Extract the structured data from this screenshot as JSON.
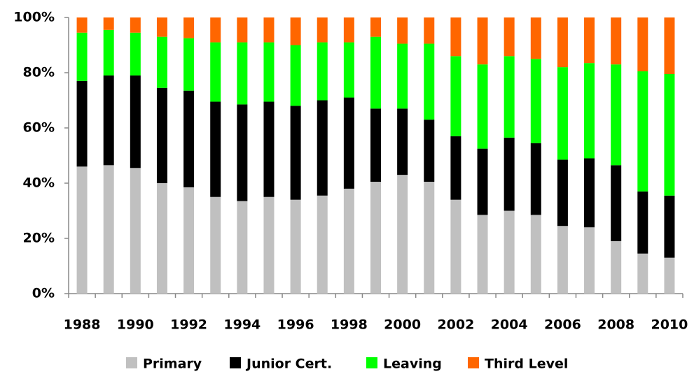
{
  "chart_data": {
    "type": "stacked_bar",
    "categories": [
      "1988",
      null,
      "1990",
      null,
      "1992",
      null,
      "1994",
      null,
      "1996",
      null,
      "1998",
      null,
      "2000",
      null,
      "2002",
      null,
      "2004",
      null,
      "2006",
      null,
      "2008",
      null,
      "2010"
    ],
    "series": [
      {
        "name": "Primary",
        "color": "#c0c0c0",
        "values": [
          46,
          46.5,
          45.5,
          40,
          38.5,
          35,
          33.5,
          35,
          34,
          35.5,
          38,
          40.5,
          43,
          40.5,
          34,
          28.5,
          30,
          28.5,
          24.5,
          24,
          19,
          14.5,
          13
        ]
      },
      {
        "name": "Junior Cert.",
        "color": "#000000",
        "values": [
          31,
          32.5,
          33.5,
          34.5,
          35,
          34.5,
          35,
          34.5,
          34,
          34.5,
          33,
          26.5,
          24,
          22.5,
          23,
          24,
          26.5,
          26,
          24,
          25,
          27.5,
          22.5,
          22.5
        ]
      },
      {
        "name": "Leaving",
        "color": "#00ff00",
        "values": [
          17.5,
          16.5,
          15.5,
          18.5,
          19,
          21.5,
          22.5,
          21.5,
          22,
          21,
          20,
          26,
          23.5,
          27.5,
          29,
          30.5,
          29.5,
          30.5,
          33.5,
          34.5,
          36.5,
          43.5,
          44
        ]
      },
      {
        "name": "Third Level",
        "color": "#ff6600",
        "values": [
          5.5,
          4.5,
          5.5,
          7,
          7.5,
          9,
          9,
          9,
          10,
          9,
          9,
          7,
          9.5,
          9.5,
          14,
          17,
          14,
          15,
          18,
          16.5,
          17,
          19.5,
          20.5
        ]
      }
    ],
    "ylim": [
      0,
      100
    ],
    "yticks": [
      {
        "value": 0,
        "label": "0%"
      },
      {
        "value": 20,
        "label": "20%"
      },
      {
        "value": 40,
        "label": "40%"
      },
      {
        "value": 60,
        "label": "60%"
      },
      {
        "value": 80,
        "label": "80%"
      },
      {
        "value": 100,
        "label": "100%"
      }
    ],
    "legend": "bottom"
  }
}
